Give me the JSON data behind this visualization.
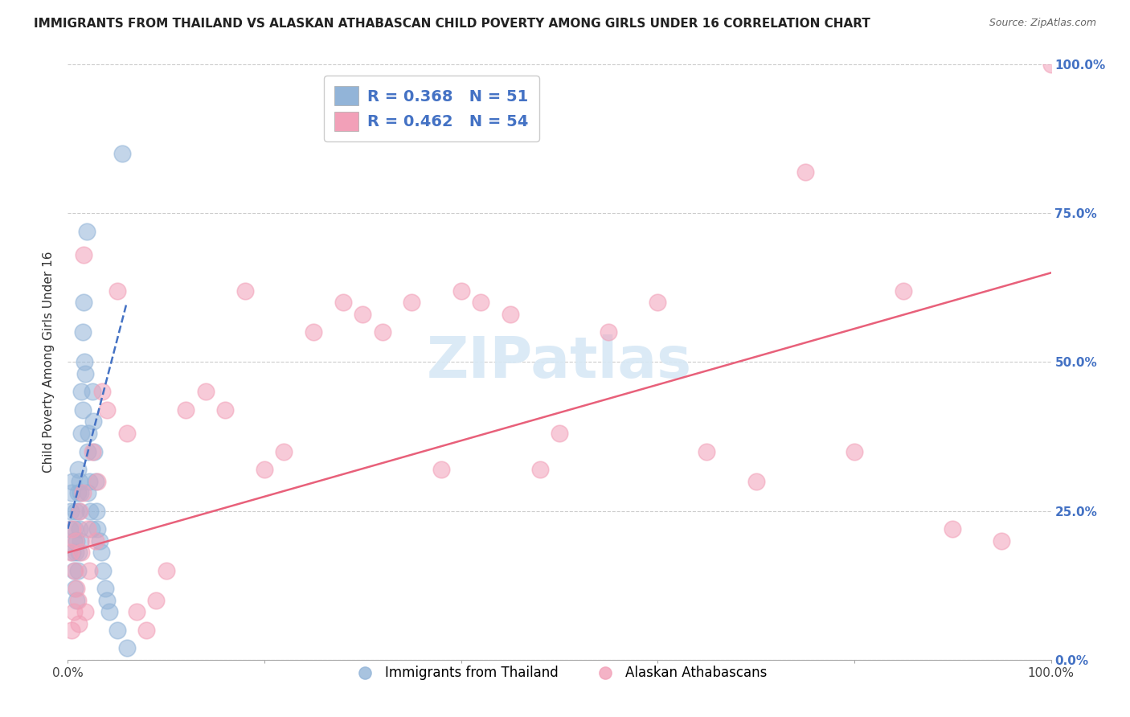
{
  "title": "IMMIGRANTS FROM THAILAND VS ALASKAN ATHABASCAN CHILD POVERTY AMONG GIRLS UNDER 16 CORRELATION CHART",
  "source": "Source: ZipAtlas.com",
  "ylabel": "Child Poverty Among Girls Under 16",
  "legend_blue_R": "0.368",
  "legend_blue_N": "51",
  "legend_pink_R": "0.462",
  "legend_pink_N": "54",
  "blue_color": "#92B4D8",
  "pink_color": "#F2A0B8",
  "trend_blue_color": "#4472C4",
  "trend_pink_color": "#E8607A",
  "trend_blue_dashed": true,
  "watermark_text": "ZIPatlas",
  "watermark_color": "#D8E8F5",
  "blue_scatter_x": [
    0.002,
    0.003,
    0.004,
    0.005,
    0.005,
    0.006,
    0.006,
    0.007,
    0.007,
    0.008,
    0.008,
    0.009,
    0.009,
    0.01,
    0.01,
    0.01,
    0.011,
    0.011,
    0.012,
    0.012,
    0.013,
    0.013,
    0.014,
    0.014,
    0.015,
    0.015,
    0.016,
    0.017,
    0.018,
    0.019,
    0.02,
    0.02,
    0.021,
    0.022,
    0.023,
    0.024,
    0.025,
    0.026,
    0.027,
    0.028,
    0.029,
    0.03,
    0.032,
    0.034,
    0.036,
    0.038,
    0.04,
    0.042,
    0.05,
    0.055,
    0.06
  ],
  "blue_scatter_y": [
    0.22,
    0.25,
    0.28,
    0.3,
    0.18,
    0.2,
    0.15,
    0.22,
    0.12,
    0.18,
    0.25,
    0.2,
    0.1,
    0.28,
    0.32,
    0.15,
    0.25,
    0.18,
    0.3,
    0.22,
    0.28,
    0.2,
    0.45,
    0.38,
    0.55,
    0.42,
    0.6,
    0.5,
    0.48,
    0.72,
    0.35,
    0.28,
    0.38,
    0.3,
    0.25,
    0.22,
    0.45,
    0.4,
    0.35,
    0.3,
    0.25,
    0.22,
    0.2,
    0.18,
    0.15,
    0.12,
    0.1,
    0.08,
    0.05,
    0.85,
    0.02
  ],
  "pink_scatter_x": [
    0.003,
    0.005,
    0.007,
    0.008,
    0.009,
    0.01,
    0.012,
    0.014,
    0.015,
    0.018,
    0.02,
    0.022,
    0.025,
    0.028,
    0.03,
    0.035,
    0.04,
    0.05,
    0.06,
    0.07,
    0.08,
    0.09,
    0.1,
    0.12,
    0.14,
    0.16,
    0.18,
    0.2,
    0.22,
    0.25,
    0.28,
    0.3,
    0.32,
    0.35,
    0.38,
    0.4,
    0.42,
    0.45,
    0.48,
    0.5,
    0.55,
    0.6,
    0.65,
    0.7,
    0.75,
    0.8,
    0.85,
    0.9,
    0.95,
    1.0,
    0.004,
    0.006,
    0.011,
    0.016
  ],
  "pink_scatter_y": [
    0.18,
    0.22,
    0.15,
    0.2,
    0.12,
    0.1,
    0.25,
    0.18,
    0.28,
    0.08,
    0.22,
    0.15,
    0.35,
    0.2,
    0.3,
    0.45,
    0.42,
    0.62,
    0.38,
    0.08,
    0.05,
    0.1,
    0.15,
    0.42,
    0.45,
    0.42,
    0.62,
    0.32,
    0.35,
    0.55,
    0.6,
    0.58,
    0.55,
    0.6,
    0.32,
    0.62,
    0.6,
    0.58,
    0.32,
    0.38,
    0.55,
    0.6,
    0.35,
    0.3,
    0.82,
    0.35,
    0.62,
    0.22,
    0.2,
    1.0,
    0.05,
    0.08,
    0.06,
    0.68
  ],
  "ytick_values": [
    0.0,
    0.25,
    0.5,
    0.75,
    1.0
  ],
  "ytick_labels": [
    "0.0%",
    "25.0%",
    "50.0%",
    "75.0%",
    "100.0%"
  ],
  "xtick_values": [
    0.0,
    0.2,
    0.4,
    0.6,
    0.8,
    1.0
  ],
  "xtick_labels": [
    "0.0%",
    "",
    "",
    "",
    "",
    "100.0%"
  ],
  "xlim": [
    0.0,
    1.0
  ],
  "ylim": [
    0.0,
    1.0
  ],
  "background": "#FFFFFF",
  "grid_color": "#CCCCCC",
  "blue_trend_x": [
    0.0,
    0.06
  ],
  "blue_trend_y": [
    0.22,
    0.6
  ],
  "pink_trend_x": [
    0.0,
    1.0
  ],
  "pink_trend_y": [
    0.18,
    0.65
  ]
}
